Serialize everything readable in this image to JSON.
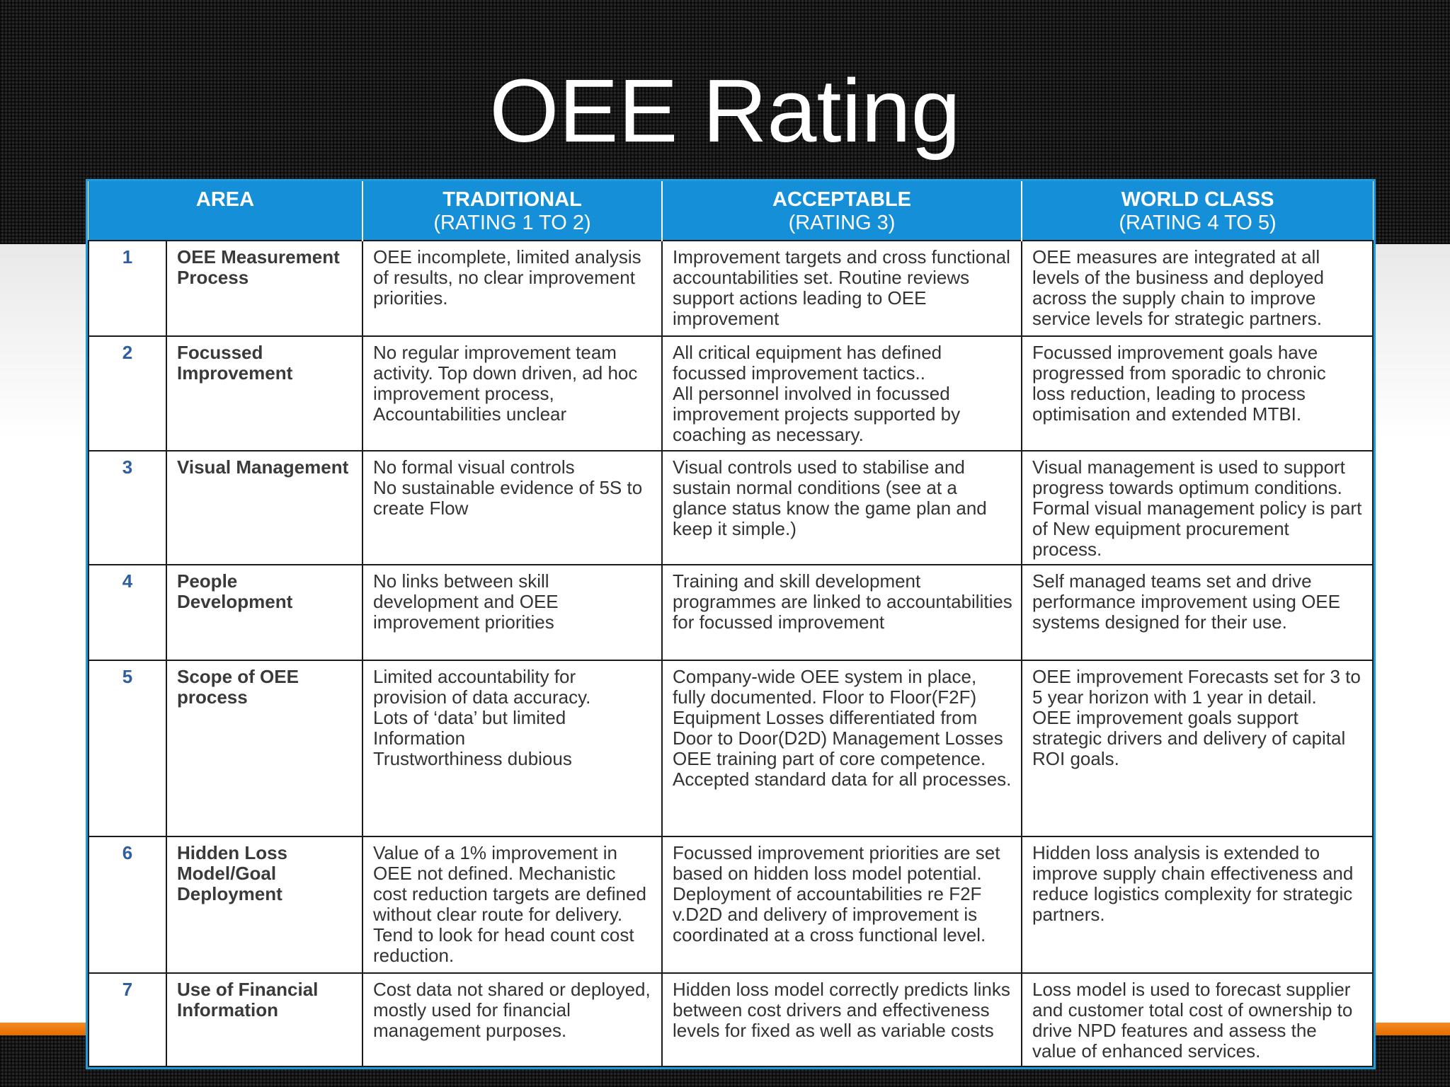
{
  "slide": {
    "title": "OEE Rating"
  },
  "table": {
    "headers": [
      {
        "main": "AREA",
        "sub": ""
      },
      {
        "main": "TRADITIONAL",
        "sub": "(RATING 1 TO 2)"
      },
      {
        "main": "ACCEPTABLE",
        "sub": "(RATING 3)"
      },
      {
        "main": "WORLD CLASS",
        "sub": "(RATING 4 TO 5)"
      }
    ],
    "rows": [
      {
        "num": "1",
        "area": "OEE Measurement Process",
        "traditional": [
          "OEE incomplete, limited analysis of results, no clear improvement priorities."
        ],
        "acceptable": [
          "Improvement targets and cross functional accountabilities set. Routine reviews support actions leading to OEE improvement"
        ],
        "world_class": [
          "OEE measures are integrated at all levels of the business and deployed across the supply chain to improve service levels for strategic partners."
        ]
      },
      {
        "num": "2",
        "area": "Focussed Improvement",
        "traditional": [
          "No regular improvement team activity. Top down driven, ad hoc improvement process, Accountabilities unclear"
        ],
        "acceptable": [
          "All critical equipment has defined focussed improvement tactics..",
          "All personnel involved in focussed improvement projects supported by coaching as necessary."
        ],
        "world_class": [
          "Focussed improvement goals have progressed from sporadic to chronic loss reduction, leading to process optimisation and extended MTBI."
        ]
      },
      {
        "num": "3",
        "area": "Visual Management",
        "traditional": [
          "No formal visual controls",
          "No sustainable evidence of 5S to create Flow"
        ],
        "acceptable": [
          "Visual controls used to stabilise and sustain normal conditions (see at a glance status know the game plan and keep it simple.)"
        ],
        "world_class": [
          "Visual management is used to support progress towards optimum conditions. Formal visual management policy is part of New equipment procurement process."
        ]
      },
      {
        "num": "4",
        "area": "People Development",
        "traditional": [
          "No links between skill development and OEE improvement priorities"
        ],
        "acceptable": [
          "Training and skill development programmes are linked to accountabilities for focussed improvement"
        ],
        "world_class": [
          "Self managed teams set and drive performance improvement using OEE systems designed for their use."
        ]
      },
      {
        "num": "5",
        "area": "Scope of OEE process",
        "traditional": [
          "Limited accountability for provision of data accuracy.",
          "Lots of ‘data’ but limited Information",
          "Trustworthiness dubious"
        ],
        "acceptable": [
          "Company-wide OEE system in place, fully documented. Floor to Floor(F2F) Equipment Losses differentiated from Door to Door(D2D) Management Losses",
          "OEE training part of core competence.",
          "Accepted standard data for all processes."
        ],
        "world_class": [
          "OEE improvement Forecasts set for 3 to 5 year horizon with 1 year in detail.",
          "OEE improvement goals support strategic drivers and delivery of capital ROI goals."
        ]
      },
      {
        "num": "6",
        "area": "Hidden Loss Model/Goal Deployment",
        "traditional": [
          "Value of a 1% improvement in OEE not defined. Mechanistic cost reduction targets are defined without clear route for delivery. Tend to look for head count cost reduction."
        ],
        "acceptable": [
          "Focussed improvement priorities are set based on hidden loss model potential.",
          "Deployment of accountabilities re F2F v.D2D and delivery of improvement is coordinated at a cross functional level."
        ],
        "world_class": [
          "Hidden loss analysis is extended to improve supply chain effectiveness and reduce logistics complexity for strategic partners."
        ]
      },
      {
        "num": "7",
        "area": "Use of Financial Information",
        "traditional": [
          "Cost data not shared or deployed, mostly used for financial management purposes."
        ],
        "acceptable": [
          "Hidden loss model correctly predicts links between cost drivers and effectiveness levels for fixed as well as variable costs"
        ],
        "world_class": [
          "Loss model is used to forecast supplier and customer total cost of ownership to drive NPD features and assess the value of enhanced services."
        ]
      }
    ]
  }
}
